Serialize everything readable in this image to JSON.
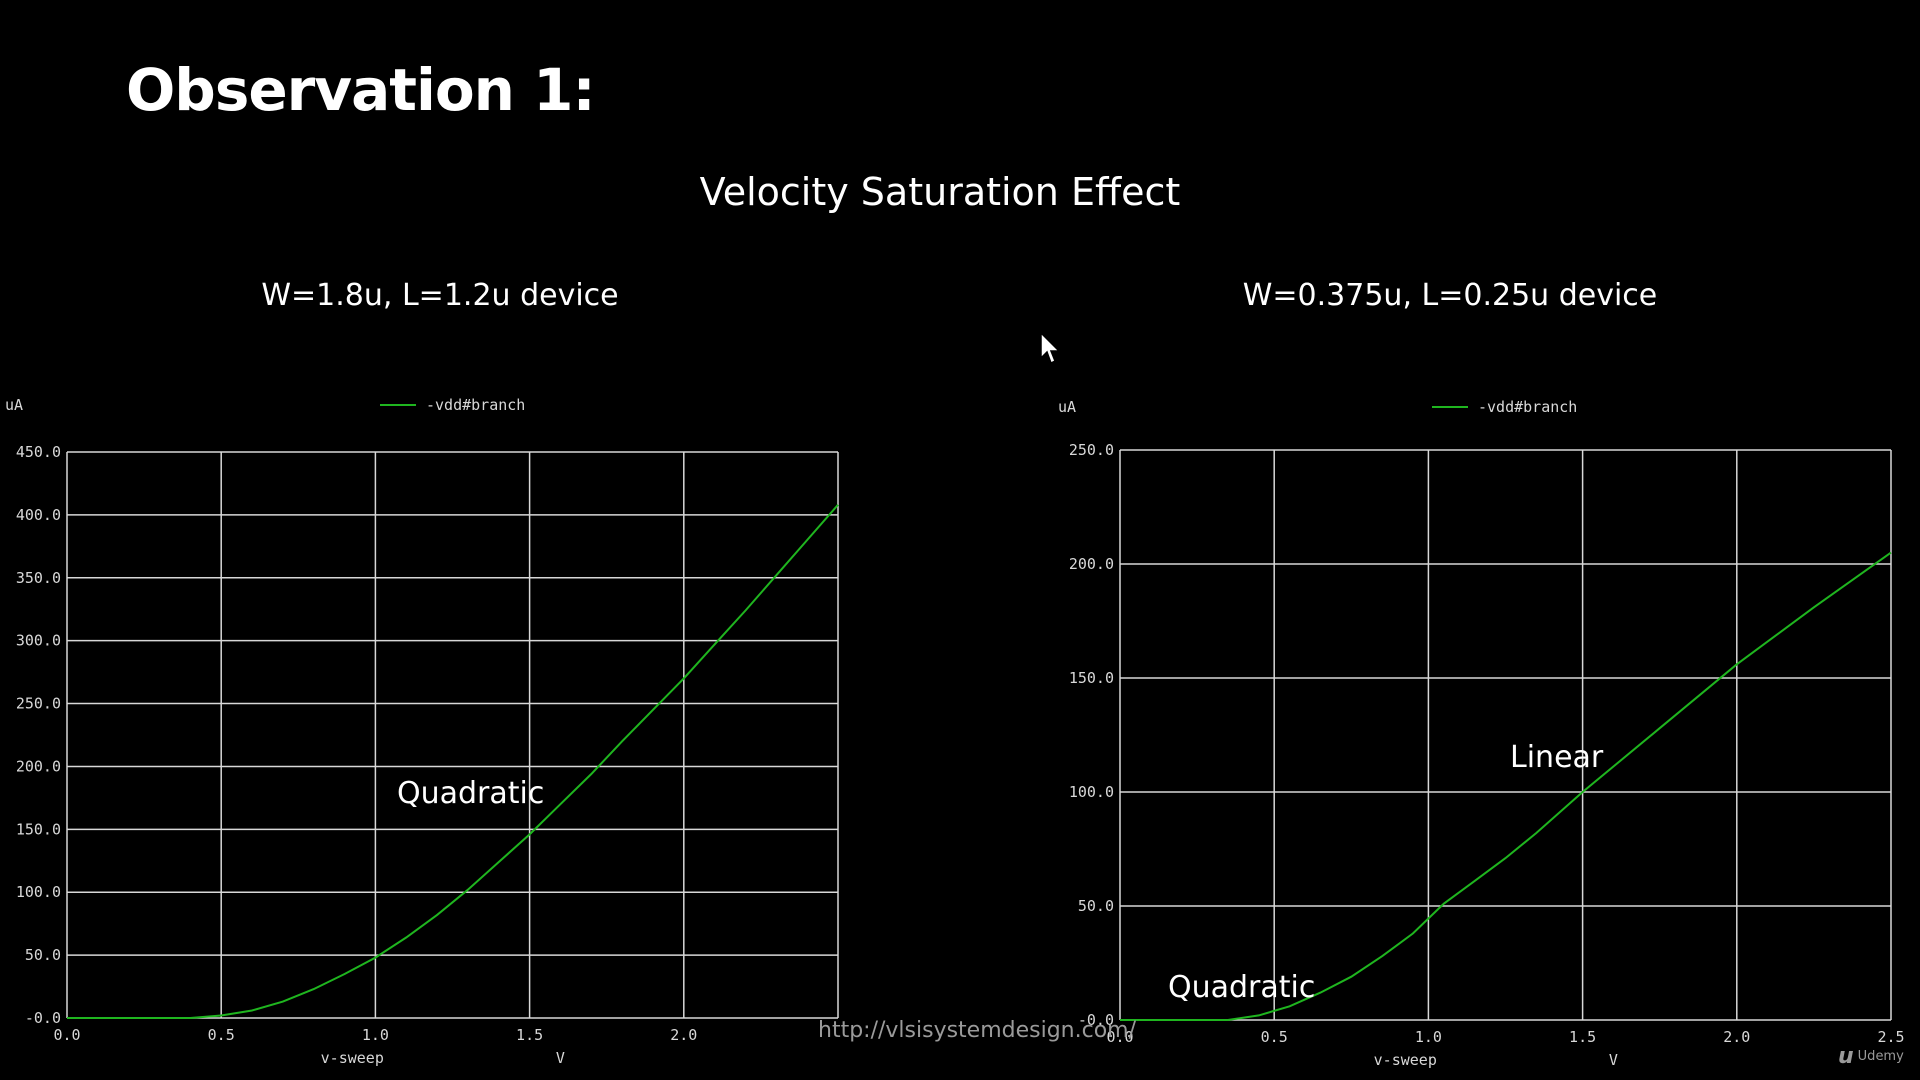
{
  "slide": {
    "title": "Observation 1:",
    "subtitle": "Velocity Saturation Effect",
    "watermark": "http://vlsisystemdesign.com/",
    "brand": "Udemy"
  },
  "colors": {
    "background": "#000000",
    "grid": "#d8d8d8",
    "trace": "#1fb51f",
    "tick_text": "#d8d8d8"
  },
  "chart_data": [
    {
      "type": "line",
      "title": "W=1.8u, L=1.2u device",
      "xlabel": "v-sweep",
      "xunit": "V",
      "ylabel": "uA",
      "xlim": [
        0.0,
        2.5
      ],
      "ylim": [
        -0.0,
        450.0
      ],
      "xticks": [
        "0.0",
        "0.5",
        "1.0",
        "1.5",
        "2.0"
      ],
      "yticks": [
        "-0.0",
        "50.0",
        "100.0",
        "150.0",
        "200.0",
        "250.0",
        "300.0",
        "350.0",
        "400.0",
        "450.0"
      ],
      "grid": true,
      "legend": "top-center",
      "annotation": "Quadratic",
      "series": [
        {
          "name": "-vdd#branch",
          "x": [
            0.0,
            0.4,
            0.5,
            0.6,
            0.7,
            0.8,
            0.9,
            1.0,
            1.1,
            1.2,
            1.3,
            1.4,
            1.5,
            1.6,
            1.7,
            1.8,
            1.9,
            2.0,
            2.1,
            2.2,
            2.3,
            2.4,
            2.5
          ],
          "y": [
            0.0,
            0.0,
            2.0,
            6.0,
            13.0,
            23.0,
            35.0,
            48.0,
            64.0,
            82.0,
            102.0,
            124.0,
            146.0,
            170.0,
            194.0,
            220.0,
            245.0,
            270.0,
            297.0,
            324.0,
            352.0,
            380.0,
            408.0
          ]
        }
      ]
    },
    {
      "type": "line",
      "title": "W=0.375u, L=0.25u device",
      "xlabel": "v-sweep",
      "xunit": "V",
      "ylabel": "uA",
      "xlim": [
        0.0,
        2.5
      ],
      "ylim": [
        -0.0,
        250.0
      ],
      "xticks": [
        "0.0",
        "0.5",
        "1.0",
        "1.5",
        "2.0",
        "2.5"
      ],
      "yticks": [
        "-0.0",
        "50.0",
        "100.0",
        "150.0",
        "200.0",
        "250.0"
      ],
      "grid": true,
      "legend": "top-center",
      "annotations": [
        "Quadratic",
        "Linear"
      ],
      "series": [
        {
          "name": "-vdd#branch",
          "x": [
            0.0,
            0.35,
            0.45,
            0.55,
            0.65,
            0.75,
            0.85,
            0.95,
            1.05,
            1.15,
            1.25,
            1.35,
            1.5,
            1.75,
            2.0,
            2.25,
            2.5
          ],
          "y": [
            0.0,
            0.0,
            2.0,
            6.0,
            12.0,
            19.0,
            28.0,
            38.0,
            51.0,
            61.0,
            71.0,
            82.0,
            100.0,
            128.0,
            156.0,
            181.0,
            205.0
          ]
        }
      ]
    }
  ]
}
